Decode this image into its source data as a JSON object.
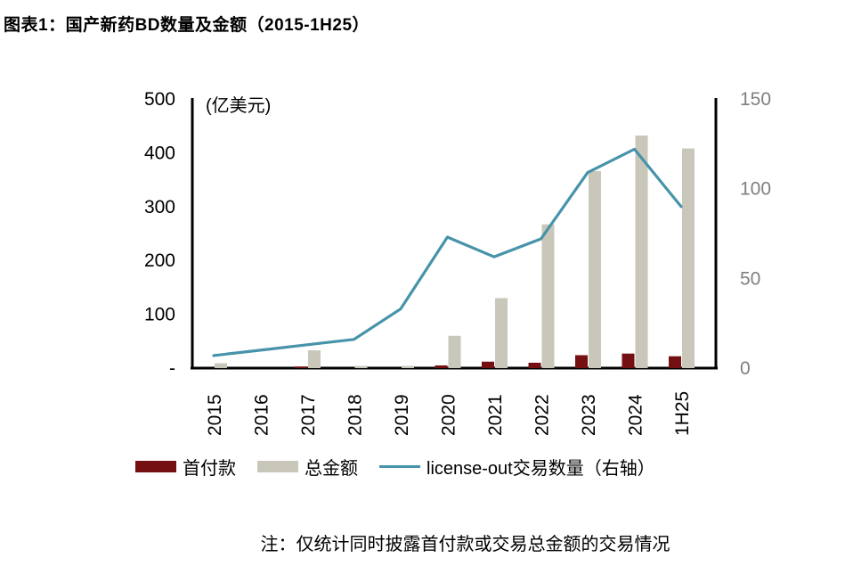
{
  "title": "图表1：国产新药BD数量及金额（2015-1H25）",
  "note": "注：仅统计同时披露首付款或交易总金额的交易情况",
  "chart_data": {
    "type": "bar",
    "subtype": "bar-line-combo",
    "unit_label": "(亿美元)",
    "categories": [
      "2015",
      "2016",
      "2017",
      "2018",
      "2019",
      "2020",
      "2021",
      "2022",
      "2023",
      "2024",
      "1H25"
    ],
    "series": [
      {
        "name": "首付款",
        "type": "bar",
        "axis": "left",
        "color": "#741011",
        "values": [
          0,
          0,
          3,
          0,
          0,
          5,
          12,
          10,
          24,
          27,
          22
        ]
      },
      {
        "name": "总金额",
        "type": "bar",
        "axis": "left",
        "color": "#C8C7BA",
        "values": [
          9,
          0,
          33,
          4,
          4,
          60,
          130,
          267,
          366,
          432,
          408
        ]
      },
      {
        "name": "license-out交易数量（右轴）",
        "type": "line",
        "axis": "right",
        "color": "#4793AA",
        "values": [
          7,
          10,
          13,
          16,
          33,
          73,
          62,
          72,
          109,
          122,
          90
        ]
      }
    ],
    "left_axis": {
      "ticks": [
        "500",
        "400",
        "300",
        "200",
        "100",
        "-"
      ],
      "min": 0,
      "max": 500,
      "label": "(亿美元)"
    },
    "right_axis": {
      "ticks": [
        "150",
        "100",
        "50",
        "0"
      ],
      "min": 0,
      "max": 150,
      "tick_color": "#7F7F7F"
    },
    "xlabel": "",
    "ylabel": "(亿美元)",
    "grid": false,
    "legend_position": "bottom",
    "axis_line_color": "#000000"
  }
}
